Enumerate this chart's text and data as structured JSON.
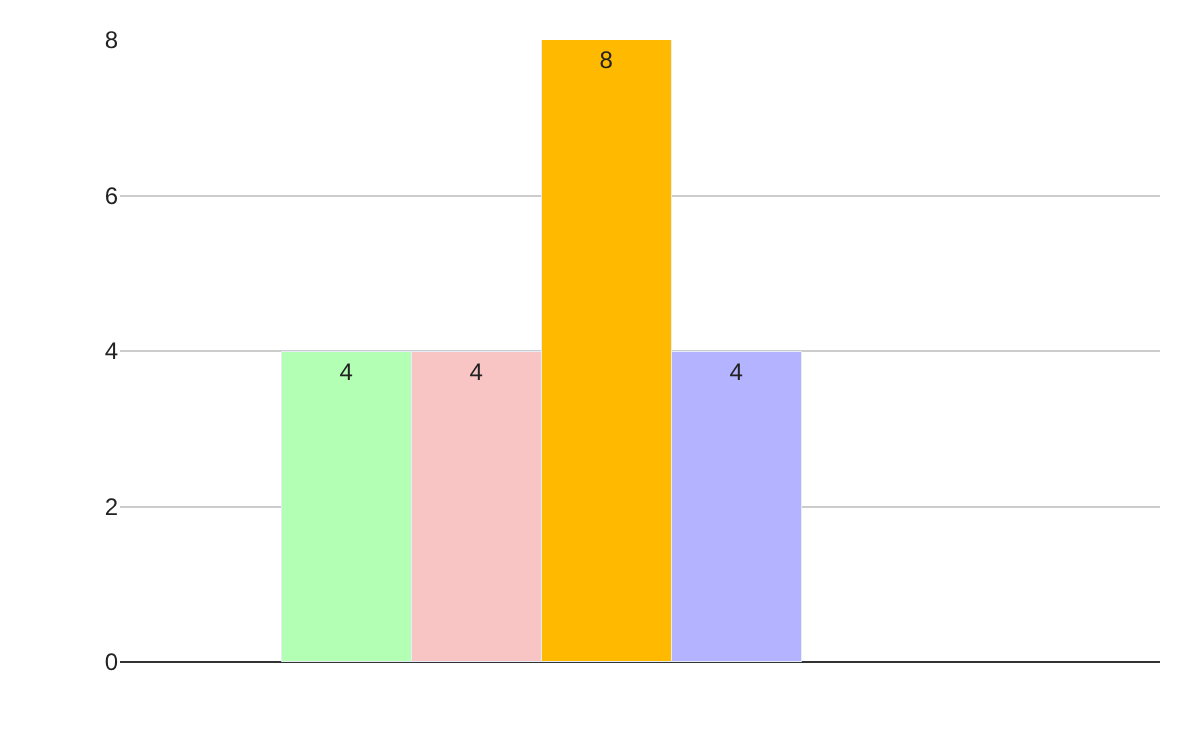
{
  "chart_data": {
    "type": "bar",
    "categories": [
      null,
      null,
      null,
      null
    ],
    "values": [
      4,
      4,
      8,
      4
    ],
    "colors": [
      "#b3ffb3",
      "#f8c4c4",
      "#ffba00",
      "#b3b3ff"
    ],
    "ylim": [
      0,
      8
    ],
    "yticks": [
      0,
      2,
      4,
      6,
      8
    ],
    "grid": "y",
    "data_labels": true,
    "tick_labels": "y"
  }
}
